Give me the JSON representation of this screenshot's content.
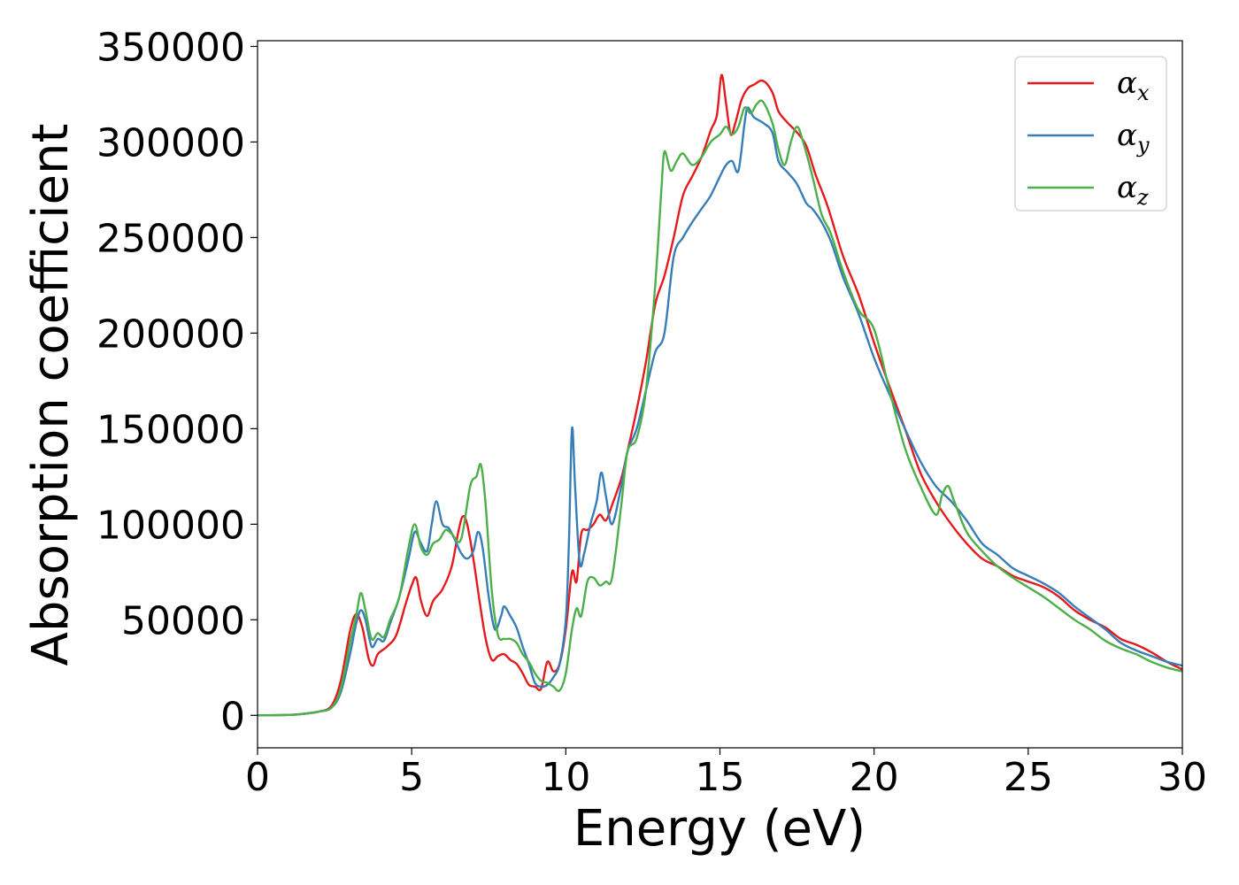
{
  "chart_data": {
    "type": "line",
    "title": "",
    "xlabel": "Energy (eV)",
    "ylabel": "Absorption coefficient",
    "xlim": [
      0,
      30
    ],
    "ylim": [
      -17000,
      353000
    ],
    "xticks": [
      0,
      5,
      10,
      15,
      20,
      25,
      30
    ],
    "yticks": [
      0,
      50000,
      100000,
      150000,
      200000,
      250000,
      300000,
      350000
    ],
    "grid": false,
    "legend_position": "top-right",
    "series": [
      {
        "name": "α",
        "subscript": "x",
        "color": "#e41a1c",
        "x": [
          0,
          1,
          1.5,
          2,
          2.4,
          2.7,
          3.0,
          3.2,
          3.4,
          3.6,
          3.75,
          3.9,
          4.2,
          4.5,
          4.8,
          5.0,
          5.15,
          5.3,
          5.5,
          5.7,
          6.0,
          6.3,
          6.5,
          6.65,
          6.8,
          7.0,
          7.2,
          7.4,
          7.6,
          7.8,
          8.0,
          8.2,
          8.4,
          8.6,
          8.8,
          9.0,
          9.2,
          9.4,
          9.6,
          9.8,
          10.0,
          10.2,
          10.35,
          10.5,
          10.7,
          10.9,
          11.1,
          11.3,
          11.5,
          11.8,
          12.0,
          12.3,
          12.6,
          12.9,
          13.2,
          13.5,
          13.8,
          14.1,
          14.4,
          14.7,
          14.9,
          15.05,
          15.2,
          15.35,
          15.5,
          15.7,
          15.9,
          16.1,
          16.4,
          16.7,
          16.9,
          17.2,
          17.5,
          17.8,
          18.1,
          18.5,
          19.0,
          19.5,
          20.0,
          20.5,
          21.0,
          21.5,
          22.0,
          22.5,
          23.0,
          23.5,
          24.0,
          24.5,
          25.0,
          25.5,
          26.0,
          26.5,
          27.0,
          27.5,
          28.0,
          28.5,
          29.0,
          29.5,
          30.0
        ],
        "y": [
          0,
          200,
          800,
          2000,
          5000,
          18000,
          44000,
          53000,
          46000,
          30000,
          26000,
          32000,
          36000,
          42000,
          58000,
          68000,
          72000,
          60000,
          52000,
          60000,
          66000,
          78000,
          95000,
          104000,
          100000,
          82000,
          60000,
          40000,
          29000,
          31000,
          32000,
          29000,
          27000,
          22000,
          16000,
          15000,
          14000,
          28000,
          23000,
          27000,
          45000,
          75000,
          70000,
          95000,
          97000,
          100000,
          105000,
          102000,
          110000,
          124000,
          138000,
          160000,
          185000,
          215000,
          230000,
          250000,
          272000,
          282000,
          292000,
          306000,
          314000,
          335000,
          320000,
          304000,
          310000,
          322000,
          328000,
          330000,
          332000,
          326000,
          316000,
          310000,
          305000,
          298000,
          283000,
          266000,
          240000,
          220000,
          195000,
          172000,
          150000,
          127000,
          112000,
          100000,
          90000,
          82000,
          78000,
          73000,
          70000,
          67000,
          62000,
          55000,
          50000,
          46000,
          40000,
          37000,
          33000,
          28000,
          24000
        ]
      },
      {
        "name": "α",
        "subscript": "y",
        "color": "#377eb8",
        "x": [
          0,
          1,
          1.5,
          2,
          2.4,
          2.7,
          3.0,
          3.2,
          3.35,
          3.5,
          3.7,
          3.9,
          4.1,
          4.3,
          4.6,
          4.9,
          5.1,
          5.3,
          5.5,
          5.65,
          5.8,
          6.0,
          6.2,
          6.4,
          6.6,
          6.8,
          7.0,
          7.15,
          7.3,
          7.5,
          7.7,
          7.9,
          8.0,
          8.2,
          8.4,
          8.6,
          8.8,
          9.0,
          9.2,
          9.4,
          9.6,
          9.8,
          10.0,
          10.1,
          10.2,
          10.3,
          10.45,
          10.6,
          10.8,
          11.0,
          11.15,
          11.3,
          11.5,
          11.8,
          12.0,
          12.3,
          12.6,
          12.9,
          13.2,
          13.5,
          13.8,
          14.1,
          14.4,
          14.7,
          15.0,
          15.2,
          15.4,
          15.6,
          15.8,
          15.9,
          16.1,
          16.4,
          16.7,
          16.9,
          17.2,
          17.5,
          17.8,
          18.0,
          18.3,
          18.6,
          19.0,
          19.5,
          20.0,
          20.5,
          21.0,
          21.5,
          22.0,
          22.5,
          23.0,
          23.5,
          24.0,
          24.5,
          25.0,
          25.5,
          26.0,
          26.5,
          27.0,
          27.5,
          28.0,
          28.5,
          29.0,
          29.5,
          30.0
        ],
        "y": [
          0,
          200,
          800,
          2000,
          4000,
          12000,
          32000,
          48000,
          55000,
          50000,
          36000,
          40000,
          39000,
          48000,
          62000,
          82000,
          96000,
          90000,
          86000,
          100000,
          112000,
          100000,
          98000,
          92000,
          85000,
          82000,
          86000,
          96000,
          88000,
          62000,
          45000,
          52000,
          57000,
          52000,
          46000,
          36000,
          27000,
          17000,
          15000,
          16000,
          20000,
          27000,
          50000,
          90000,
          150000,
          120000,
          80000,
          85000,
          100000,
          112000,
          127000,
          115000,
          100000,
          120000,
          138000,
          150000,
          170000,
          190000,
          200000,
          240000,
          250000,
          258000,
          265000,
          272000,
          282000,
          288000,
          290000,
          285000,
          310000,
          318000,
          313000,
          310000,
          305000,
          290000,
          284000,
          278000,
          268000,
          265000,
          258000,
          248000,
          229000,
          210000,
          187000,
          168000,
          150000,
          133000,
          120000,
          112000,
          102000,
          90000,
          84000,
          77000,
          73000,
          69000,
          64000,
          57000,
          51000,
          45000,
          38000,
          34000,
          31000,
          28000,
          26000
        ]
      },
      {
        "name": "α",
        "subscript": "z",
        "color": "#4daf4a",
        "x": [
          0,
          1,
          1.5,
          2,
          2.4,
          2.7,
          3.0,
          3.2,
          3.35,
          3.5,
          3.7,
          3.9,
          4.1,
          4.3,
          4.6,
          4.9,
          5.1,
          5.3,
          5.5,
          5.7,
          5.9,
          6.1,
          6.3,
          6.6,
          6.9,
          7.1,
          7.25,
          7.4,
          7.6,
          7.8,
          8.0,
          8.2,
          8.4,
          8.6,
          8.8,
          9.0,
          9.2,
          9.4,
          9.6,
          9.8,
          10.0,
          10.2,
          10.35,
          10.5,
          10.7,
          10.9,
          11.1,
          11.3,
          11.5,
          11.8,
          12.0,
          12.3,
          12.6,
          12.9,
          13.1,
          13.2,
          13.4,
          13.6,
          13.8,
          14.1,
          14.4,
          14.7,
          15.0,
          15.2,
          15.4,
          15.6,
          15.8,
          16.0,
          16.2,
          16.4,
          16.7,
          16.9,
          17.1,
          17.3,
          17.5,
          17.7,
          18.0,
          18.3,
          18.6,
          19.0,
          19.5,
          20.0,
          20.5,
          21.0,
          21.5,
          22.0,
          22.2,
          22.4,
          22.6,
          23.0,
          23.5,
          24.0,
          24.5,
          25.0,
          25.5,
          26.0,
          26.5,
          27.0,
          27.5,
          28.0,
          28.5,
          29.0,
          29.5,
          30.0
        ],
        "y": [
          0,
          200,
          800,
          2000,
          4000,
          14000,
          38000,
          52000,
          64000,
          55000,
          40000,
          43000,
          41000,
          50000,
          62000,
          88000,
          100000,
          88000,
          84000,
          90000,
          92000,
          97000,
          95000,
          92000,
          120000,
          125000,
          131000,
          110000,
          65000,
          42000,
          40000,
          40000,
          38000,
          32000,
          28000,
          22000,
          18000,
          17000,
          15000,
          13000,
          22000,
          45000,
          56000,
          52000,
          70000,
          72000,
          68000,
          70000,
          72000,
          110000,
          138000,
          145000,
          170000,
          225000,
          275000,
          295000,
          285000,
          290000,
          294000,
          288000,
          292000,
          300000,
          304000,
          308000,
          304000,
          308000,
          318000,
          315000,
          320000,
          321000,
          310000,
          296000,
          288000,
          300000,
          308000,
          300000,
          282000,
          262000,
          252000,
          232000,
          212000,
          202000,
          170000,
          140000,
          120000,
          105000,
          115000,
          120000,
          112000,
          96000,
          86000,
          78000,
          72000,
          67000,
          62000,
          56000,
          50000,
          45000,
          39000,
          35000,
          32000,
          28000,
          25000,
          23000
        ]
      }
    ]
  }
}
